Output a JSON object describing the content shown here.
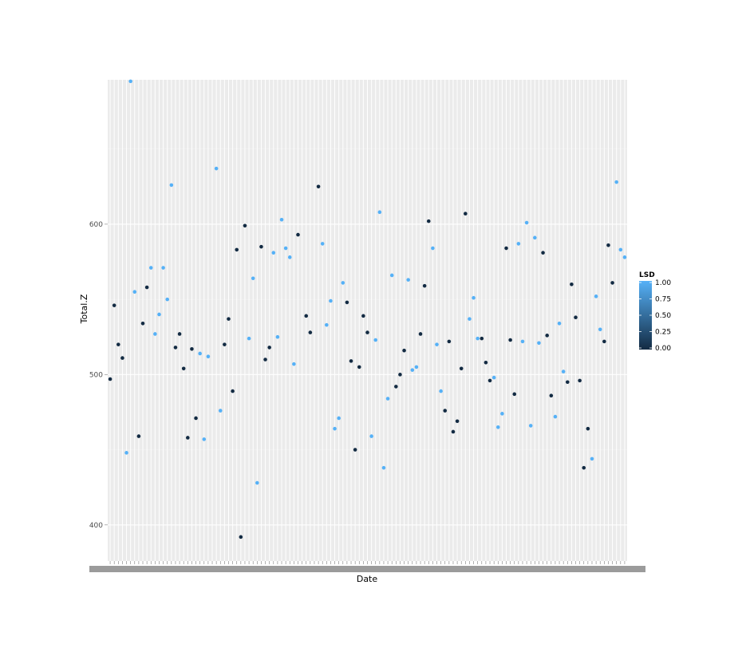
{
  "chart_data": {
    "type": "scatter",
    "xlabel": "Date",
    "ylabel": "Total.Z",
    "x_axis": "discrete dates (tick labels overlap and are illegible)",
    "ylim": [
      376,
      696
    ],
    "y_ticks": [
      "400",
      "500",
      "600"
    ],
    "y_tick_values": [
      400,
      500,
      600
    ],
    "grid": true,
    "legend": {
      "title": "LSD",
      "position": "right",
      "type": "colorbar",
      "labels": [
        "1.00",
        "0.75",
        "0.50",
        "0.25",
        "0.00"
      ],
      "low_color": "#132B43",
      "high_color": "#56B1F7"
    },
    "panel_background": "#EBEBEB",
    "x_categories_count": 127,
    "points_fields": [
      "date_index",
      "Total.Z",
      "LSD"
    ],
    "points": [
      [
        1,
        497,
        0
      ],
      [
        2,
        546,
        0
      ],
      [
        3,
        520,
        0
      ],
      [
        4,
        511,
        0
      ],
      [
        5,
        448,
        1
      ],
      [
        6,
        695,
        1
      ],
      [
        7,
        555,
        1
      ],
      [
        8,
        459,
        0
      ],
      [
        9,
        534,
        0
      ],
      [
        10,
        558,
        0
      ],
      [
        11,
        571,
        1
      ],
      [
        12,
        527,
        1
      ],
      [
        13,
        540,
        1
      ],
      [
        14,
        571,
        1
      ],
      [
        15,
        550,
        1
      ],
      [
        16,
        626,
        1
      ],
      [
        17,
        518,
        0
      ],
      [
        18,
        527,
        0
      ],
      [
        19,
        504,
        0
      ],
      [
        20,
        458,
        0
      ],
      [
        21,
        517,
        0
      ],
      [
        22,
        471,
        0
      ],
      [
        23,
        514,
        1
      ],
      [
        24,
        457,
        1
      ],
      [
        25,
        512,
        1
      ],
      [
        27,
        637,
        1
      ],
      [
        28,
        476,
        1
      ],
      [
        29,
        520,
        0
      ],
      [
        30,
        537,
        0
      ],
      [
        31,
        489,
        0
      ],
      [
        32,
        583,
        0
      ],
      [
        33,
        392,
        0
      ],
      [
        34,
        599,
        0
      ],
      [
        35,
        524,
        1
      ],
      [
        36,
        564,
        1
      ],
      [
        37,
        428,
        1
      ],
      [
        38,
        585,
        0
      ],
      [
        39,
        510,
        0
      ],
      [
        40,
        518,
        0
      ],
      [
        41,
        581,
        1
      ],
      [
        42,
        525,
        1
      ],
      [
        43,
        603,
        1
      ],
      [
        44,
        584,
        1
      ],
      [
        45,
        578,
        1
      ],
      [
        46,
        507,
        1
      ],
      [
        47,
        593,
        0
      ],
      [
        49,
        539,
        0
      ],
      [
        50,
        528,
        0
      ],
      [
        52,
        625,
        0
      ],
      [
        53,
        587,
        1
      ],
      [
        54,
        533,
        1
      ],
      [
        55,
        549,
        1
      ],
      [
        56,
        464,
        1
      ],
      [
        57,
        471,
        1
      ],
      [
        58,
        561,
        1
      ],
      [
        59,
        548,
        0
      ],
      [
        60,
        509,
        0
      ],
      [
        61,
        450,
        0
      ],
      [
        62,
        505,
        0
      ],
      [
        63,
        539,
        0
      ],
      [
        64,
        528,
        0
      ],
      [
        65,
        459,
        1
      ],
      [
        66,
        523,
        1
      ],
      [
        67,
        608,
        1
      ],
      [
        68,
        438,
        1
      ],
      [
        69,
        484,
        1
      ],
      [
        70,
        566,
        1
      ],
      [
        71,
        492,
        0
      ],
      [
        72,
        500,
        0
      ],
      [
        73,
        516,
        0
      ],
      [
        74,
        563,
        1
      ],
      [
        75,
        503,
        1
      ],
      [
        76,
        505,
        1
      ],
      [
        77,
        527,
        0
      ],
      [
        78,
        559,
        0
      ],
      [
        79,
        602,
        0
      ],
      [
        80,
        584,
        1
      ],
      [
        81,
        520,
        1
      ],
      [
        82,
        489,
        1
      ],
      [
        83,
        476,
        0
      ],
      [
        84,
        522,
        0
      ],
      [
        85,
        462,
        0
      ],
      [
        86,
        469,
        0
      ],
      [
        87,
        504,
        0
      ],
      [
        88,
        607,
        0
      ],
      [
        89,
        537,
        1
      ],
      [
        90,
        551,
        1
      ],
      [
        91,
        524,
        1
      ],
      [
        92,
        524,
        0
      ],
      [
        93,
        508,
        0
      ],
      [
        94,
        496,
        0
      ],
      [
        95,
        498,
        1
      ],
      [
        96,
        465,
        1
      ],
      [
        97,
        474,
        1
      ],
      [
        98,
        584,
        0
      ],
      [
        99,
        523,
        0
      ],
      [
        100,
        487,
        0
      ],
      [
        101,
        587,
        1
      ],
      [
        102,
        522,
        1
      ],
      [
        103,
        601,
        1
      ],
      [
        104,
        466,
        1
      ],
      [
        105,
        591,
        1
      ],
      [
        106,
        521,
        1
      ],
      [
        107,
        581,
        0
      ],
      [
        108,
        526,
        0
      ],
      [
        109,
        486,
        0
      ],
      [
        110,
        472,
        1
      ],
      [
        111,
        534,
        1
      ],
      [
        112,
        502,
        1
      ],
      [
        113,
        495,
        0
      ],
      [
        114,
        560,
        0
      ],
      [
        115,
        538,
        0
      ],
      [
        116,
        496,
        0
      ],
      [
        117,
        438,
        0
      ],
      [
        118,
        464,
        0
      ],
      [
        119,
        444,
        1
      ],
      [
        120,
        552,
        1
      ],
      [
        121,
        530,
        1
      ],
      [
        122,
        522,
        0
      ],
      [
        123,
        586,
        0
      ],
      [
        124,
        561,
        0
      ],
      [
        125,
        628,
        1
      ],
      [
        126,
        583,
        1
      ],
      [
        127,
        578,
        1
      ]
    ]
  }
}
